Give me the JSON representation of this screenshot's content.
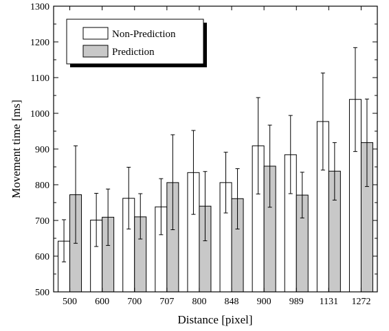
{
  "chart_data": {
    "type": "bar",
    "xlabel": "Distance [pixel]",
    "ylabel": "Movement time [ms]",
    "categories": [
      "500",
      "600",
      "700",
      "707",
      "800",
      "848",
      "900",
      "989",
      "1131",
      "1272"
    ],
    "ylim": [
      500,
      1300
    ],
    "yticks": [
      500,
      600,
      700,
      800,
      900,
      1000,
      1100,
      1200,
      1300
    ],
    "grid": false,
    "legend_position": "top-left",
    "series": [
      {
        "name": "Non-Prediction",
        "fill": "#ffffff",
        "values": [
          642,
          701,
          762,
          738,
          834,
          806,
          909,
          884,
          977,
          1039
        ],
        "err_low": [
          584,
          627,
          676,
          660,
          717,
          721,
          774,
          775,
          841,
          893
        ],
        "err_high": [
          702,
          776,
          849,
          817,
          952,
          891,
          1044,
          994,
          1113,
          1184
        ]
      },
      {
        "name": "Prediction",
        "fill": "#c8c8c8",
        "values": [
          772,
          709,
          710,
          806,
          740,
          761,
          852,
          771,
          838,
          918
        ],
        "err_low": [
          636,
          630,
          648,
          674,
          643,
          676,
          737,
          707,
          757,
          795
        ],
        "err_high": [
          909,
          788,
          775,
          940,
          837,
          845,
          967,
          835,
          918,
          1040
        ]
      }
    ]
  }
}
